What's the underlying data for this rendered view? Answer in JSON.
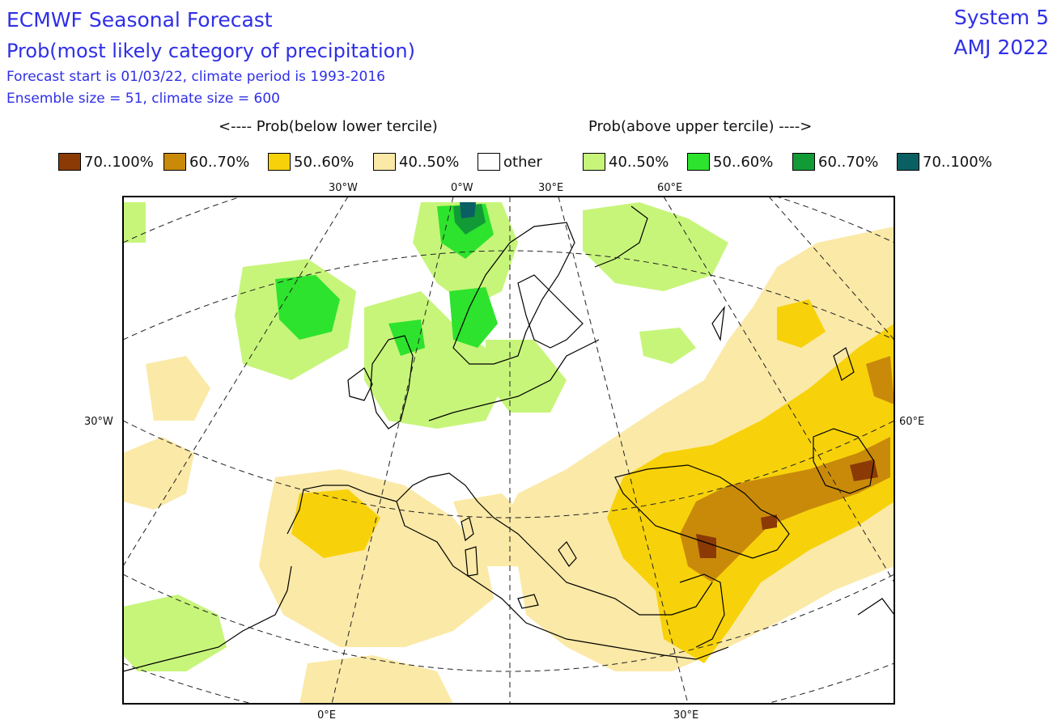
{
  "header": {
    "title": "ECMWF Seasonal Forecast",
    "subtitle": "Prob(most likely category of precipitation)",
    "info_line1": "Forecast start is 01/03/22, climate period is 1993-2016",
    "info_line2": "Ensemble size = 51, climate size = 600",
    "system": "System 5",
    "season": "AMJ 2022"
  },
  "legend": {
    "below_title": "<---- Prob(below lower tercile)",
    "above_title": "Prob(above upper tercile) ---->",
    "items": [
      {
        "label": "70..100%",
        "color": "#8b3a06"
      },
      {
        "label": "60..70%",
        "color": "#c98a0a"
      },
      {
        "label": "50..60%",
        "color": "#f7d20a"
      },
      {
        "label": "40..50%",
        "color": "#fbe9a7"
      },
      {
        "label": "other",
        "color": "#ffffff"
      },
      {
        "label": "40..50%",
        "color": "#c7f57a"
      },
      {
        "label": "50..60%",
        "color": "#2de32d"
      },
      {
        "label": "60..70%",
        "color": "#129a37"
      },
      {
        "label": "70..100%",
        "color": "#0a5f63"
      }
    ]
  },
  "map": {
    "top_labels": [
      "30°W",
      "0°W",
      "30°E",
      "60°E"
    ],
    "left_label": "30°W",
    "right_label": "60°E",
    "bottom_labels": [
      "0°E",
      "30°E"
    ]
  }
}
